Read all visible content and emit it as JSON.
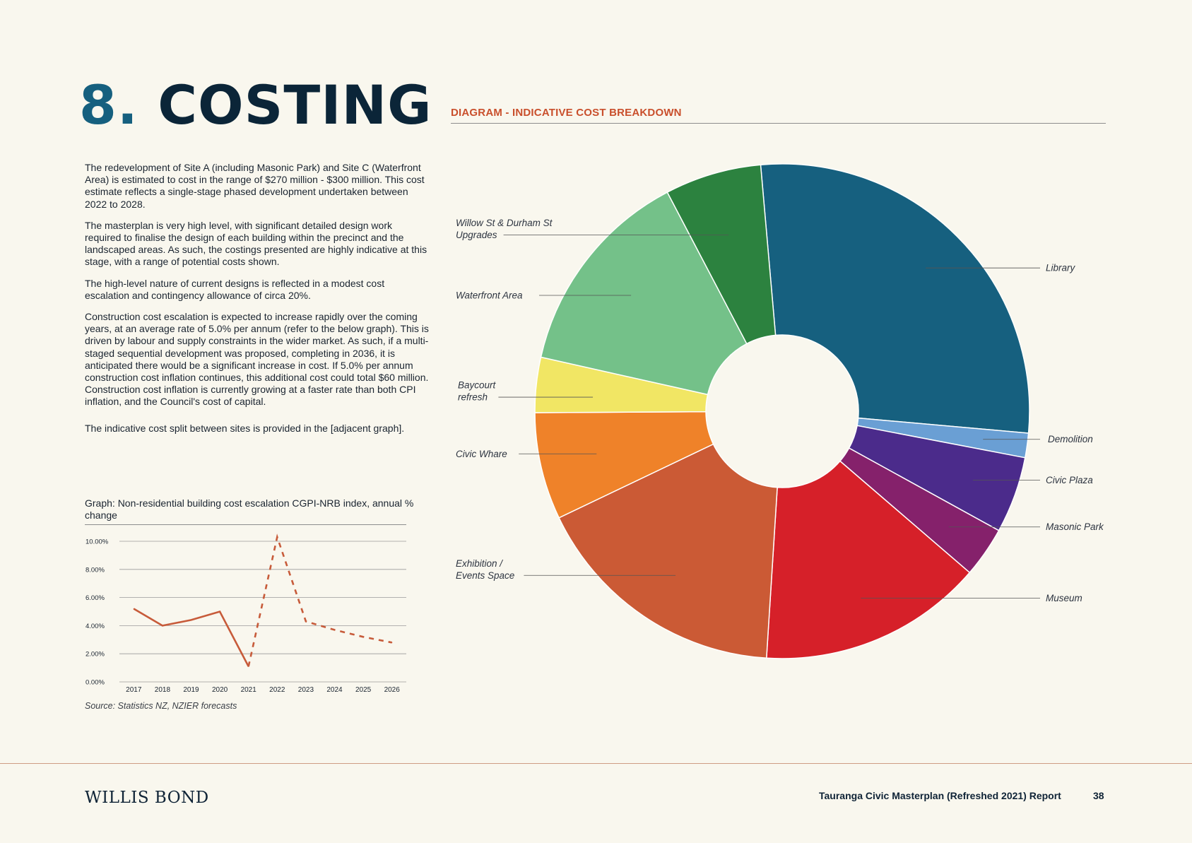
{
  "heading": {
    "number": "8.",
    "word": "COSTING"
  },
  "intro": {
    "paragraphs": [
      "The redevelopment of Site A (including Masonic Park) and Site C (Waterfront Area) is estimated to cost in the range of $270 million - $300 million. This cost estimate reflects a single-stage phased development undertaken between 2022 to 2028.",
      "The masterplan is very high level, with significant detailed design work required to finalise the design of each building within the precinct and the landscaped areas. As such, the costings presented are highly indicative at this stage, with a range of potential costs shown.",
      "The high-level nature of current designs is reflected in a modest cost escalation and contingency allowance of circa 20%.",
      "Construction cost escalation is expected to increase rapidly over the coming years, at an average rate of 5.0% per annum (refer to the below graph). This is driven by labour and supply constraints in the wider market. As such, if a multi-staged sequential development was proposed, completing in 2036, it is anticipated there would be a significant increase in cost. If 5.0% per annum construction cost inflation continues, this additional cost could total $60 million. Construction cost inflation is currently growing at a faster rate than both CPI inflation, and the Council's cost of capital.",
      "The indicative cost split between sites is provided in the [adjacent graph]."
    ]
  },
  "graph": {
    "title": "Graph: Non-residential building cost escalation CGPI-NRB index, annual % change",
    "source": "Source: Statistics NZ, NZIER forecasts"
  },
  "diagram": {
    "title": "DIAGRAM - INDICATIVE  COST BREAKDOWN"
  },
  "footer": {
    "logo": "WILLIS BOND",
    "report_title": "Tauranga Civic Masterplan (Refreshed 2021) Report",
    "page_number": "38"
  },
  "chart_data": [
    {
      "type": "line",
      "title": "Graph: Non-residential building cost escalation CGPI-NRB index, annual % change",
      "x": [
        "2017",
        "2018",
        "2019",
        "2020",
        "2021",
        "2022",
        "2023",
        "2024",
        "2025",
        "2026"
      ],
      "ylim": [
        0,
        10
      ],
      "yticks": [
        "10.00%",
        "8.00%",
        "6.00%",
        "4.00%",
        "2.00%",
        "0.00%"
      ],
      "grid": true,
      "series": [
        {
          "style": "solid",
          "color": "#c75b3a",
          "x": [
            "2017",
            "2018",
            "2019",
            "2020",
            "2021"
          ],
          "values": [
            5.2,
            4.0,
            4.4,
            5.0,
            1.1
          ]
        },
        {
          "style": "dashed",
          "color": "#c75b3a",
          "x": [
            "2021",
            "2022",
            "2023",
            "2024",
            "2025",
            "2026"
          ],
          "values": [
            1.1,
            10.3,
            4.3,
            3.7,
            3.2,
            2.8
          ]
        }
      ]
    },
    {
      "type": "pie",
      "variant": "donut",
      "title": "DIAGRAM - INDICATIVE  COST BREAKDOWN",
      "slices": [
        {
          "label": "Library",
          "value": 27.8,
          "color": "#16607f"
        },
        {
          "label": "Demolition",
          "value": 1.6,
          "color": "#6a9fd4"
        },
        {
          "label": "Civic Plaza",
          "value": 5.0,
          "color": "#4b2b8b"
        },
        {
          "label": "Masonic Park",
          "value": 3.3,
          "color": "#85216b"
        },
        {
          "label": "Museum",
          "value": 14.7,
          "color": "#d62029"
        },
        {
          "label": "Exhibition / Events Space",
          "value": 16.9,
          "color": "#cb5a35"
        },
        {
          "label": "Civic Whare",
          "value": 7.0,
          "color": "#ef8229"
        },
        {
          "label": "Baycourt refresh",
          "value": 3.6,
          "color": "#f1e664"
        },
        {
          "label": "Waterfront Area",
          "value": 13.8,
          "color": "#74c189"
        },
        {
          "label": "Willow St & Durham St Upgrades",
          "value": 6.3,
          "color": "#2c823f"
        }
      ],
      "callouts": [
        {
          "lines": [
            "Library"
          ],
          "side": "right"
        },
        {
          "lines": [
            "Demolition"
          ],
          "side": "right"
        },
        {
          "lines": [
            "Civic Plaza"
          ],
          "side": "right"
        },
        {
          "lines": [
            "Masonic Park"
          ],
          "side": "right"
        },
        {
          "lines": [
            "Museum"
          ],
          "side": "right"
        },
        {
          "lines": [
            "Exhibition /",
            "Events Space"
          ],
          "side": "left"
        },
        {
          "lines": [
            "Civic Whare"
          ],
          "side": "left"
        },
        {
          "lines": [
            "Baycourt",
            "refresh"
          ],
          "side": "left"
        },
        {
          "lines": [
            "Waterfront Area"
          ],
          "side": "left"
        },
        {
          "lines": [
            "Willow St & Durham St",
            "Upgrades"
          ],
          "side": "left"
        }
      ]
    }
  ]
}
